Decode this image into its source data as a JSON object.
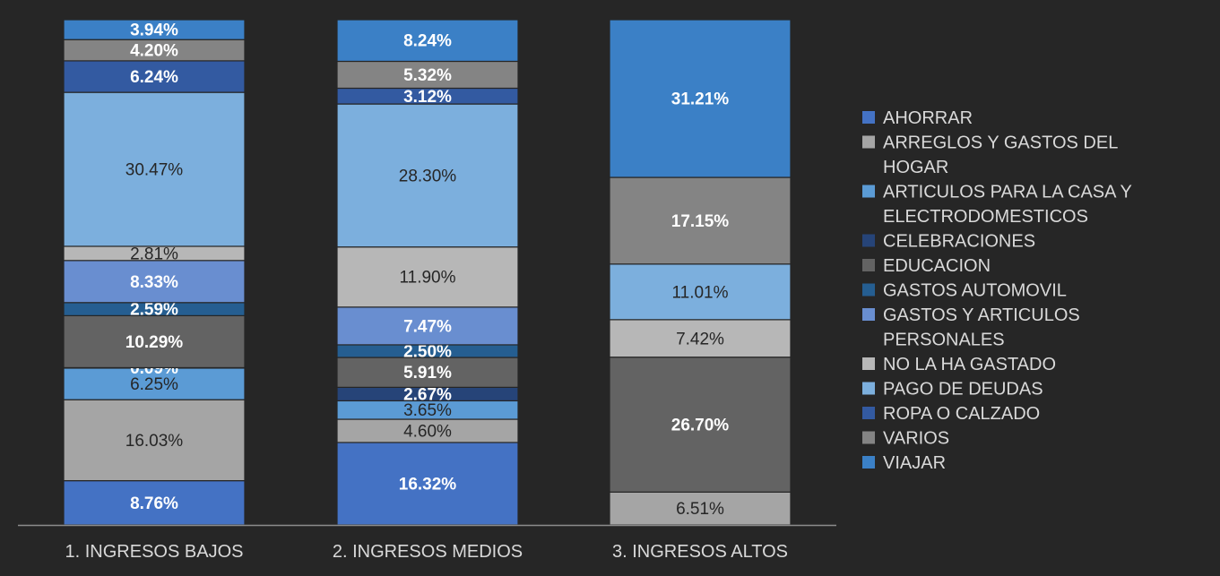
{
  "chart_data": {
    "type": "bar",
    "stacked": true,
    "normalized": true,
    "categories": [
      "1. INGRESOS BAJOS",
      "2. INGRESOS MEDIOS",
      "3. INGRESOS ALTOS"
    ],
    "series": [
      {
        "name": "AHORRAR",
        "color": "#4472c4",
        "values": [
          8.76,
          16.32,
          0
        ],
        "labels": [
          "8.76%",
          "16.32%",
          ""
        ],
        "label_bold": true
      },
      {
        "name": "ARREGLOS Y GASTOS DEL HOGAR",
        "color": "#a5a5a5",
        "values": [
          16.03,
          4.6,
          6.51
        ],
        "labels": [
          "16.03%",
          "4.60%",
          "6.51%"
        ],
        "label_bold": false
      },
      {
        "name": "ARTICULOS PARA LA CASA Y ELECTRODOMESTICOS",
        "color": "#5b9bd5",
        "values": [
          6.25,
          3.65,
          0
        ],
        "labels": [
          "6.25%",
          "3.65%",
          ""
        ],
        "label_bold": false
      },
      {
        "name": "CELEBRACIONES",
        "color": "#264478",
        "values": [
          0.09,
          2.67,
          0
        ],
        "labels": [
          "0.09%",
          "2.67%",
          ""
        ],
        "label_bold": true
      },
      {
        "name": "EDUCACION",
        "color": "#636363",
        "values": [
          10.29,
          5.91,
          26.7
        ],
        "labels": [
          "10.29%",
          "5.91%",
          "26.70%"
        ],
        "label_bold": true
      },
      {
        "name": "GASTOS AUTOMOVIL",
        "color": "#255e91",
        "values": [
          2.59,
          2.5,
          0
        ],
        "labels": [
          "2.59%",
          "2.50%",
          ""
        ],
        "label_bold": true
      },
      {
        "name": "GASTOS Y ARTICULOS PERSONALES",
        "color": "#698ed0",
        "values": [
          8.33,
          7.47,
          0
        ],
        "labels": [
          "8.33%",
          "7.47%",
          ""
        ],
        "label_bold": true
      },
      {
        "name": "NO LA HA GASTADO",
        "color": "#b7b7b7",
        "values": [
          2.81,
          11.9,
          7.42
        ],
        "labels": [
          "2.81%",
          "11.90%",
          "7.42%"
        ],
        "label_bold": false
      },
      {
        "name": "PAGO DE DEUDAS",
        "color": "#7cafdd",
        "values": [
          30.47,
          28.3,
          11.01
        ],
        "labels": [
          "30.47%",
          "28.30%",
          "11.01%"
        ],
        "label_bold": false
      },
      {
        "name": "ROPA O CALZADO",
        "color": "#335aa1",
        "values": [
          6.24,
          3.12,
          0
        ],
        "labels": [
          "6.24%",
          "3.12%",
          ""
        ],
        "label_bold": true
      },
      {
        "name": "VARIOS",
        "color": "#848484",
        "values": [
          4.2,
          5.32,
          17.15
        ],
        "labels": [
          "4.20%",
          "5.32%",
          "17.15%"
        ],
        "label_bold": true
      },
      {
        "name": "VIAJAR",
        "color": "#3b80c6",
        "values": [
          3.94,
          8.24,
          31.21
        ],
        "labels": [
          "3.94%",
          "8.24%",
          "31.21%"
        ],
        "label_bold": true
      }
    ],
    "ylim": [
      0,
      100
    ],
    "grid": false,
    "legend": "right"
  }
}
